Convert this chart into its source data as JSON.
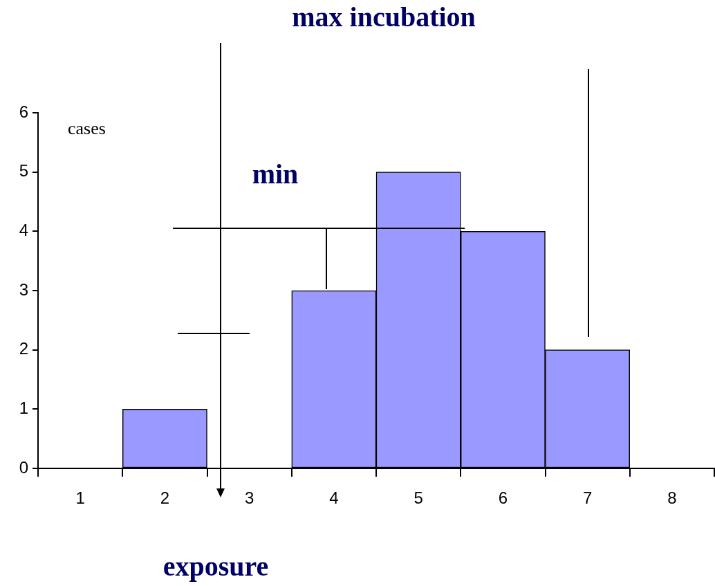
{
  "chart_data": {
    "type": "bar",
    "categories": [
      "1",
      "2",
      "3",
      "4",
      "5",
      "6",
      "7",
      "8"
    ],
    "values": [
      0,
      1,
      0,
      3,
      5,
      4,
      2,
      0
    ],
    "color": "#9999ff",
    "ylim": [
      0,
      6
    ],
    "yticks": [
      0,
      1,
      2,
      3,
      4,
      5,
      6
    ],
    "ylabel": "cases",
    "annotations": [
      "max incubation",
      "min",
      "exposure"
    ],
    "legend": false
  }
}
